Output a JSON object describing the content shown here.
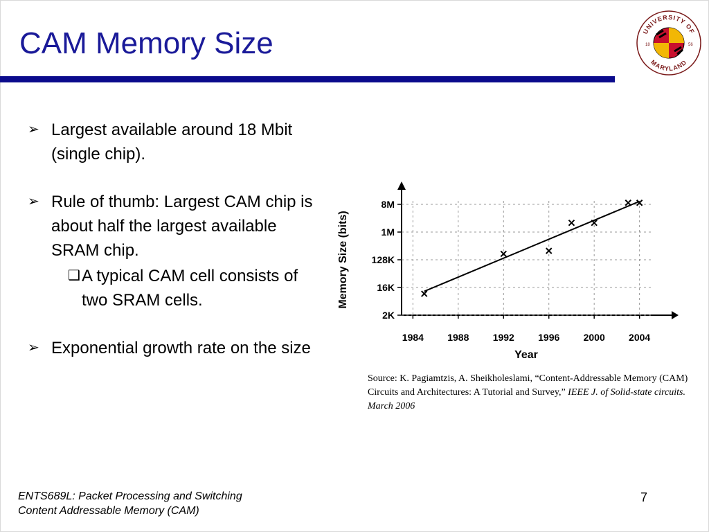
{
  "slide": {
    "title": "CAM Memory Size",
    "accent_color": "#0b0b8c",
    "title_color": "#1a1a99"
  },
  "logo": {
    "top_text": "UNIVERSITY OF",
    "bottom_text": "MARYLAND",
    "year_left": "18",
    "year_right": "56"
  },
  "bullets": [
    {
      "marker_icon": "arrow-bullet-icon",
      "text": "Largest available around 18 Mbit (single chip)."
    },
    {
      "marker_icon": "arrow-bullet-icon",
      "text": "Rule of thumb: Largest CAM chip is about half the largest available SRAM chip."
    },
    {
      "marker_icon": "checkbox-bullet-icon",
      "text": "A typical CAM cell consists of two SRAM cells."
    },
    {
      "marker_icon": "arrow-bullet-icon",
      "text": "Exponential growth rate on the size"
    }
  ],
  "chart_data": {
    "type": "scatter",
    "xlabel": "Year",
    "ylabel": "Memory Size (bits)",
    "x_ticks": [
      "1984",
      "1988",
      "1992",
      "1996",
      "2000",
      "2004"
    ],
    "y_ticks": [
      "2K",
      "16K",
      "128K",
      "1M",
      "8M"
    ],
    "y_scale": "log2",
    "grid": true,
    "marker": "x",
    "points": [
      {
        "x": 1985,
        "y": "10K"
      },
      {
        "x": 1992,
        "y": "200K"
      },
      {
        "x": 1996,
        "y": "250K"
      },
      {
        "x": 1998,
        "y": "2M"
      },
      {
        "x": 2000,
        "y": "2M"
      },
      {
        "x": 2003,
        "y": "9M"
      },
      {
        "x": 2004,
        "y": "9M"
      }
    ],
    "trend_line": {
      "from": {
        "x": 1985,
        "y": "12K"
      },
      "to": {
        "x": 2004,
        "y": "10M"
      }
    }
  },
  "source": {
    "text": "Source: K. Pagiamtzis, A. Sheikholeslami, “Content-Addressable Memory (CAM) Circuits and Architectures: A Tutorial and Survey,”",
    "journal": "IEEE J. of Solid-state circuits. March 2006"
  },
  "footer": {
    "line1": "ENTS689L: Packet Processing and Switching",
    "line2": "Content Addressable Memory (CAM)",
    "page_number": "7"
  }
}
